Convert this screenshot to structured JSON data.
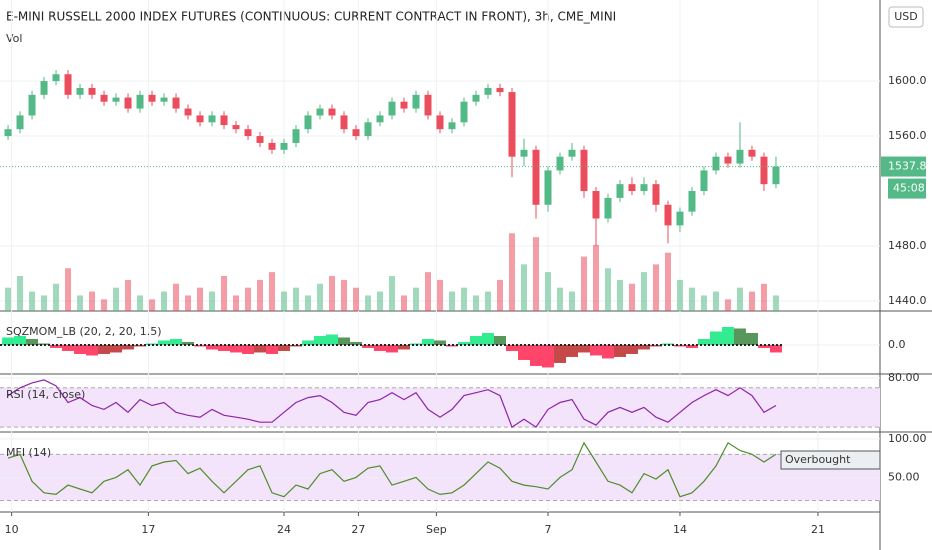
{
  "chart_data": [
    {
      "type": "candlestick",
      "title": "E-MINI RUSSELL 2000 INDEX FUTURES (CONTINUOUS: CURRENT CONTRACT IN FRONT), 3h, CME_MINI",
      "volume_label": "Vol",
      "currency": "USD",
      "up_color": "#53b987",
      "down_color": "#eb4d5c",
      "candles": [
        [
          1560,
          1568,
          1557,
          1565
        ],
        [
          1565,
          1578,
          1562,
          1575
        ],
        [
          1575,
          1593,
          1572,
          1590
        ],
        [
          1590,
          1603,
          1587,
          1600
        ],
        [
          1600,
          1608,
          1597,
          1605
        ],
        [
          1605,
          1608,
          1587,
          1590
        ],
        [
          1590,
          1598,
          1587,
          1595
        ],
        [
          1595,
          1598,
          1587,
          1590
        ],
        [
          1590,
          1593,
          1582,
          1585
        ],
        [
          1585,
          1591,
          1582,
          1588
        ],
        [
          1588,
          1591,
          1577,
          1580
        ],
        [
          1580,
          1593,
          1577,
          1590
        ],
        [
          1590,
          1593,
          1582,
          1585
        ],
        [
          1585,
          1591,
          1582,
          1588
        ],
        [
          1588,
          1591,
          1577,
          1580
        ],
        [
          1580,
          1583,
          1572,
          1575
        ],
        [
          1575,
          1578,
          1567,
          1570
        ],
        [
          1570,
          1578,
          1567,
          1575
        ],
        [
          1575,
          1578,
          1565,
          1568
        ],
        [
          1568,
          1571,
          1562,
          1565
        ],
        [
          1565,
          1568,
          1557,
          1560
        ],
        [
          1560,
          1563,
          1552,
          1555
        ],
        [
          1555,
          1558,
          1547,
          1550
        ],
        [
          1550,
          1558,
          1547,
          1555
        ],
        [
          1555,
          1568,
          1552,
          1565
        ],
        [
          1565,
          1578,
          1562,
          1575
        ],
        [
          1575,
          1583,
          1572,
          1580
        ],
        [
          1580,
          1583,
          1572,
          1575
        ],
        [
          1575,
          1578,
          1562,
          1565
        ],
        [
          1565,
          1568,
          1557,
          1560
        ],
        [
          1560,
          1573,
          1557,
          1570
        ],
        [
          1570,
          1578,
          1567,
          1575
        ],
        [
          1575,
          1588,
          1572,
          1585
        ],
        [
          1585,
          1588,
          1577,
          1580
        ],
        [
          1580,
          1593,
          1577,
          1590
        ],
        [
          1590,
          1593,
          1572,
          1575
        ],
        [
          1575,
          1578,
          1562,
          1565
        ],
        [
          1565,
          1573,
          1562,
          1570
        ],
        [
          1570,
          1588,
          1567,
          1585
        ],
        [
          1585,
          1593,
          1582,
          1590
        ],
        [
          1590,
          1598,
          1587,
          1595
        ],
        [
          1595,
          1598,
          1589,
          1592
        ],
        [
          1592,
          1595,
          1530,
          1545
        ],
        [
          1545,
          1558,
          1538,
          1550
        ],
        [
          1550,
          1553,
          1500,
          1510
        ],
        [
          1510,
          1538,
          1505,
          1535
        ],
        [
          1535,
          1548,
          1532,
          1545
        ],
        [
          1545,
          1555,
          1542,
          1550
        ],
        [
          1550,
          1553,
          1515,
          1520
        ],
        [
          1520,
          1523,
          1480,
          1500
        ],
        [
          1500,
          1518,
          1497,
          1515
        ],
        [
          1515,
          1528,
          1512,
          1525
        ],
        [
          1525,
          1530,
          1517,
          1520
        ],
        [
          1520,
          1530,
          1517,
          1525
        ],
        [
          1525,
          1528,
          1505,
          1510
        ],
        [
          1510,
          1513,
          1482,
          1495
        ],
        [
          1495,
          1508,
          1490,
          1505
        ],
        [
          1505,
          1523,
          1502,
          1520
        ],
        [
          1520,
          1538,
          1517,
          1535
        ],
        [
          1535,
          1548,
          1532,
          1545
        ],
        [
          1545,
          1548,
          1537,
          1540
        ],
        [
          1540,
          1570,
          1537,
          1550
        ],
        [
          1550,
          1553,
          1542,
          1545
        ],
        [
          1545,
          1548,
          1520,
          1525
        ],
        [
          1525,
          1545,
          1522,
          1537.8
        ]
      ],
      "volume": [
        30,
        45,
        25,
        20,
        35,
        55,
        20,
        25,
        15,
        30,
        40,
        20,
        15,
        25,
        35,
        20,
        30,
        25,
        45,
        20,
        30,
        40,
        50,
        25,
        30,
        20,
        35,
        45,
        40,
        30,
        20,
        25,
        45,
        20,
        30,
        50,
        40,
        25,
        30,
        20,
        25,
        40,
        100,
        60,
        95,
        50,
        30,
        25,
        70,
        85,
        55,
        40,
        35,
        50,
        60,
        75,
        40,
        30,
        20,
        25,
        15,
        30,
        25,
        35,
        20
      ],
      "volume_ylim": [
        0,
        400
      ],
      "ylim": [
        1432.7,
        1659
      ],
      "yticks": [
        {
          "value": 1600,
          "label": "1600.0"
        },
        {
          "value": 1560,
          "label": "1560.0"
        },
        {
          "value": 1480,
          "label": "1480.0"
        },
        {
          "value": 1440,
          "label": "1440.0"
        }
      ],
      "last_price": 1537.8,
      "countdown": "45:08",
      "xlim": [
        -0.67,
        72.67
      ],
      "xticks": [
        {
          "value": 0.3,
          "label": "10"
        },
        {
          "value": 11.7,
          "label": "17"
        },
        {
          "value": 23,
          "label": "24"
        },
        {
          "value": 29.2,
          "label": "27"
        },
        {
          "value": 35.7,
          "label": "Sep"
        },
        {
          "value": 45,
          "label": "7"
        },
        {
          "value": 56,
          "label": "14"
        },
        {
          "value": 67.5,
          "label": "21"
        }
      ]
    },
    {
      "type": "bar",
      "title": "SQZMOM_LB (20, 2, 20, 1.5)",
      "values": [
        5,
        6,
        4,
        1,
        -2,
        -4,
        -6,
        -7,
        -6,
        -5,
        -3,
        -1,
        1,
        3,
        4,
        2,
        -1,
        -3,
        -4,
        -5,
        -6,
        -5,
        -6,
        -4,
        -1,
        3,
        6,
        7,
        5,
        2,
        -2,
        -4,
        -5,
        -3,
        1,
        4,
        3,
        -1,
        2,
        6,
        8,
        6,
        -4,
        -10,
        -14,
        -15,
        -12,
        -8,
        -5,
        -7,
        -9,
        -8,
        -6,
        -3,
        -1,
        1,
        -1,
        -2,
        4,
        9,
        12,
        11,
        8,
        -2,
        -5
      ],
      "colors": [
        "#00e676",
        "#2e7d32",
        "#ff1744",
        "#b71c1c"
      ],
      "ylim": [
        -18.7,
        22
      ],
      "yticks": [
        {
          "value": 0,
          "label": "0.0"
        }
      ]
    },
    {
      "type": "line",
      "title": "RSI (14, close)",
      "color": "#8e24aa",
      "values": [
        62,
        70,
        75,
        78,
        72,
        55,
        60,
        52,
        48,
        55,
        45,
        58,
        52,
        55,
        45,
        42,
        40,
        48,
        42,
        40,
        38,
        35,
        35,
        45,
        55,
        60,
        62,
        55,
        45,
        42,
        55,
        58,
        65,
        58,
        65,
        48,
        40,
        48,
        62,
        65,
        68,
        62,
        30,
        38,
        30,
        48,
        55,
        58,
        38,
        32,
        45,
        50,
        45,
        50,
        40,
        35,
        45,
        55,
        62,
        68,
        62,
        70,
        62,
        45,
        52
      ],
      "bands": [
        30,
        70
      ],
      "ylim": [
        26,
        83
      ],
      "yticks": [
        {
          "value": 80,
          "label": "80.00"
        }
      ]
    },
    {
      "type": "line",
      "title": "MFI (14)",
      "color": "#4e8f2a",
      "values": [
        75,
        80,
        45,
        30,
        28,
        40,
        35,
        30,
        45,
        50,
        60,
        40,
        65,
        70,
        72,
        55,
        62,
        45,
        30,
        45,
        60,
        65,
        30,
        25,
        40,
        35,
        55,
        60,
        45,
        50,
        62,
        65,
        40,
        45,
        50,
        35,
        28,
        30,
        40,
        55,
        70,
        62,
        45,
        40,
        38,
        35,
        50,
        60,
        95,
        70,
        45,
        40,
        30,
        55,
        48,
        60,
        25,
        30,
        45,
        65,
        95,
        85,
        80,
        70,
        80
      ],
      "bands": [
        20,
        80
      ],
      "ylim": [
        6.4,
        107.7
      ],
      "yticks": [
        {
          "value": 100,
          "label": "100.00"
        },
        {
          "value": 50,
          "label": "50.00"
        }
      ],
      "annotation": "Overbought"
    }
  ]
}
